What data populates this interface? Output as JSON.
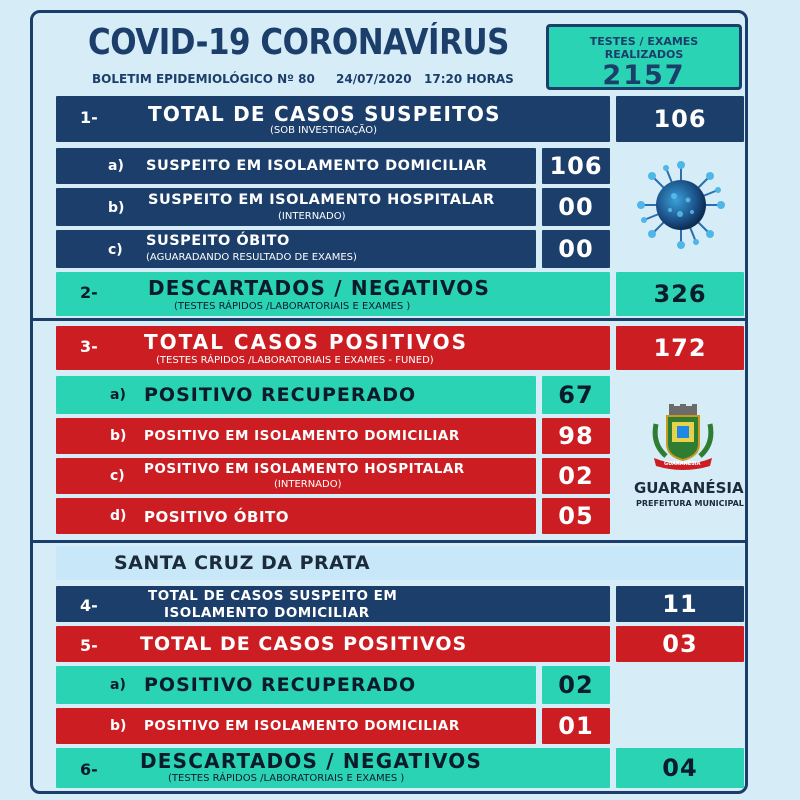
{
  "header": {
    "title": "COVID-19  CORONAVÍRUS",
    "bulletin": "BOLETIM EPIDEMIOLÓGICO Nº 80",
    "date": "24/07/2020",
    "time": "17:20 HORAS",
    "tests_label": "TESTES / EXAMES REALIZADOS",
    "tests_value": "2157"
  },
  "suspects": {
    "index": "1-",
    "title": "TOTAL DE CASOS SUSPEITOS",
    "subtitle": "(SOB INVESTIGAÇÃO)",
    "total": "106",
    "items": [
      {
        "letter": "a)",
        "label": "SUSPEITO EM ISOLAMENTO DOMICILIAR",
        "note": "",
        "value": "106"
      },
      {
        "letter": "b)",
        "label": "SUSPEITO EM ISOLAMENTO HOSPITALAR",
        "note": "(INTERNADO)",
        "value": "00"
      },
      {
        "letter": "c)",
        "label": "SUSPEITO ÓBITO",
        "note": "(AGUARADANDO RESULTADO  DE EXAMES)",
        "value": "00"
      }
    ]
  },
  "discarded": {
    "index": "2-",
    "title": "DESCARTADOS / NEGATIVOS",
    "subtitle": "(TESTES RÁPIDOS /LABORATORIAIS E EXAMES )",
    "total": "326"
  },
  "positives": {
    "index": "3-",
    "title": "TOTAL CASOS POSITIVOS",
    "subtitle": "(TESTES RÁPIDOS /LABORATORIAIS E EXAMES - FUNED)",
    "total": "172",
    "items": [
      {
        "letter": "a)",
        "label": "POSITIVO RECUPERADO",
        "note": "",
        "value": "67"
      },
      {
        "letter": "b)",
        "label": "POSITIVO EM ISOLAMENTO DOMICILIAR",
        "note": "",
        "value": "98"
      },
      {
        "letter": "c)",
        "label": "POSITIVO EM ISOLAMENTO HOSPITALAR",
        "note": "(INTERNADO)",
        "value": "02"
      },
      {
        "letter": "d)",
        "label": "POSITIVO ÓBITO",
        "note": "",
        "value": "05"
      }
    ]
  },
  "logo": {
    "name": "GUARANÉSIA",
    "subtitle": "PREFEITURA MUNICIPAL",
    "ribbon": "GUARANÉSIA"
  },
  "district": {
    "name": "SANTA CRUZ DA PRATA",
    "suspects": {
      "index": "4-",
      "line1": "TOTAL DE CASOS SUSPEITO EM",
      "line2": "ISOLAMENTO DOMICILIAR",
      "value": "11"
    },
    "positives": {
      "index": "5-",
      "title": "TOTAL DE CASOS POSITIVOS",
      "value": "03",
      "items": [
        {
          "letter": "a)",
          "label": "POSITIVO RECUPERADO",
          "value": "02"
        },
        {
          "letter": "b)",
          "label": "POSITIVO EM ISOLAMENTO DOMICILIAR",
          "value": "01"
        }
      ]
    },
    "discarded": {
      "index": "6-",
      "title": "DESCARTADOS / NEGATIVOS",
      "subtitle": "(TESTES RÁPIDOS /LABORATORIAIS E EXAMES )",
      "value": "04"
    }
  },
  "colors": {
    "navy": "#1b3e6b",
    "red": "#cc1d23",
    "green": "#2ad3b4",
    "background": "#d6ecf7"
  }
}
